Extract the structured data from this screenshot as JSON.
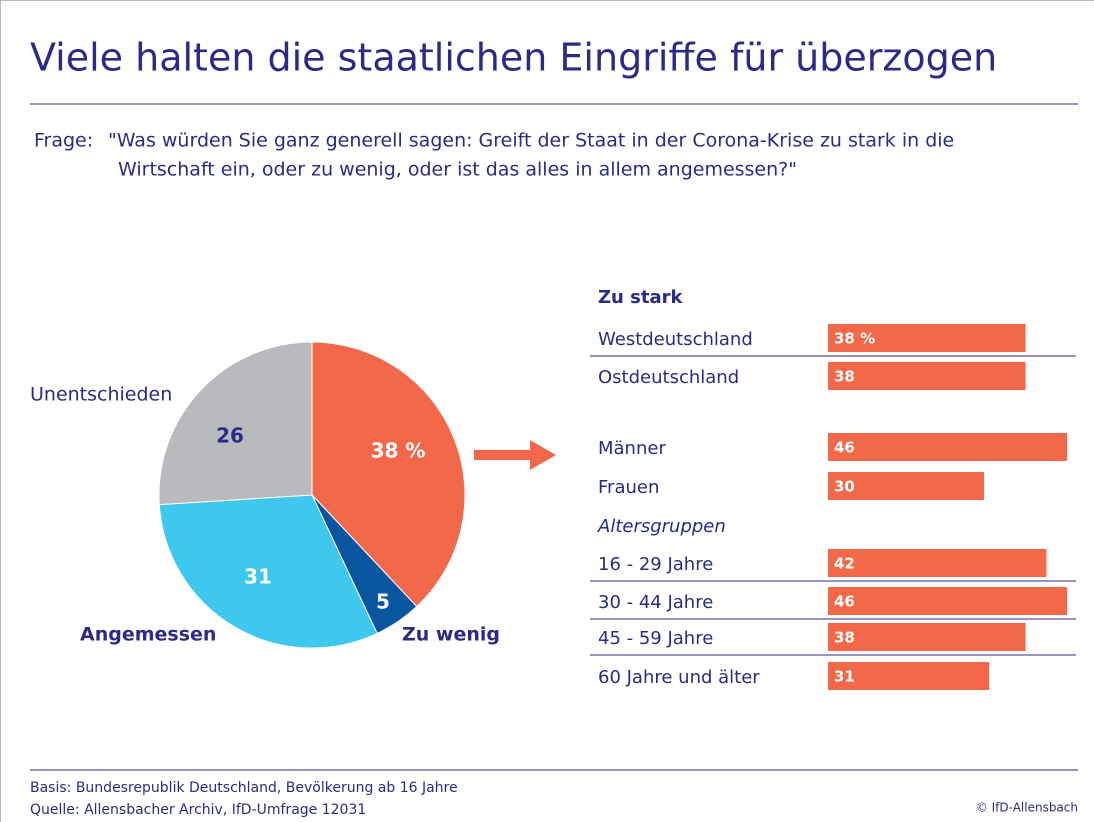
{
  "title": "Viele halten die staatlichen Eingriffe für überzogen",
  "question_label": "Frage:",
  "question": [
    "\"Was würden Sie ganz generell sagen: Greift der Staat in der Corona-Krise zu stark in die",
    "Wirtschaft ein, oder zu wenig, oder ist das alles in allem angemessen?\""
  ],
  "chart_data": [
    {
      "type": "pie",
      "categories": [
        "Zu stark",
        "Zu wenig",
        "Angemessen",
        "Unentschieden"
      ],
      "values": [
        38,
        5,
        31,
        26
      ],
      "value_labels": [
        "38 %",
        "5",
        "31",
        "26"
      ],
      "colors": [
        "#f26849",
        "#0a55a0",
        "#3ec8f0",
        "#b9babe"
      ]
    },
    {
      "type": "bar",
      "orientation": "horizontal",
      "categories": [
        "Westdeutschland",
        "Ostdeutschland",
        "Männer",
        "Frauen",
        "16 - 29 Jahre",
        "30 - 44 Jahre",
        "45 - 59 Jahre",
        "60 Jahre und älter"
      ],
      "values": [
        38,
        38,
        46,
        30,
        42,
        46,
        38,
        31
      ],
      "value_labels": [
        "38 %",
        "38",
        "46",
        "30",
        "42",
        "46",
        "38",
        "31"
      ],
      "group_label": "Altersgruppen",
      "color": "#f26849"
    }
  ],
  "footer": {
    "basis": "Basis: Bundesrepublik Deutschland, Bevölkerung ab 16 Jahre",
    "source": "Quelle: Allensbacher Archiv, IfD-Umfrage 12031",
    "copyright": "© IfD-Allensbach"
  }
}
